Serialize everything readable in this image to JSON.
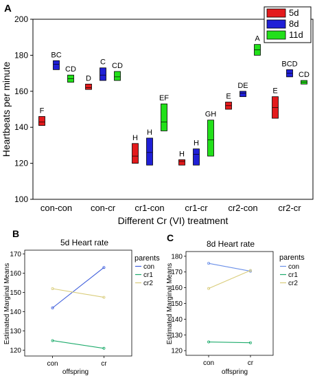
{
  "chart_data": [
    {
      "panel_label": "A",
      "type": "box",
      "title": "",
      "xlabel": "Different Cr (VI) treatment",
      "ylabel": "Heartbeats per minute",
      "ylim": [
        100,
        200
      ],
      "yticks": [
        100,
        120,
        140,
        160,
        180,
        200
      ],
      "categories": [
        "con-con",
        "con-cr",
        "cr1-con",
        "cr1-cr",
        "cr2-con",
        "cr2-cr"
      ],
      "legend": {
        "position": "top-right"
      },
      "series": [
        {
          "name": "5d",
          "color": "#e31a1c",
          "boxes": [
            {
              "low": 141,
              "high": 146,
              "median": 143,
              "letter": "F"
            },
            {
              "low": 161,
              "high": 164,
              "median": 162,
              "letter": "D"
            },
            {
              "low": 120,
              "high": 131,
              "median": 124,
              "letter": "H"
            },
            {
              "low": 119,
              "high": 122,
              "median": 121,
              "letter": "H"
            },
            {
              "low": 150,
              "high": 154,
              "median": 152,
              "letter": "E"
            },
            {
              "low": 145,
              "high": 157,
              "median": 151,
              "letter": "E"
            }
          ]
        },
        {
          "name": "8d",
          "color": "#1f1fd6",
          "boxes": [
            {
              "low": 172,
              "high": 177,
              "median": 175,
              "letter": "BC"
            },
            {
              "low": 166,
              "high": 173,
              "median": 169,
              "letter": "C"
            },
            {
              "low": 119,
              "high": 134,
              "median": 126,
              "letter": "H"
            },
            {
              "low": 119,
              "high": 128,
              "median": 125,
              "letter": "H"
            },
            {
              "low": 157,
              "high": 160,
              "median": 159,
              "letter": "DE"
            },
            {
              "low": 168,
              "high": 172,
              "median": 170,
              "letter": "BCD"
            }
          ]
        },
        {
          "name": "11d",
          "color": "#22e01a",
          "boxes": [
            {
              "low": 165,
              "high": 169,
              "median": 167,
              "letter": "CD"
            },
            {
              "low": 166,
              "high": 171,
              "median": 168,
              "letter": "CD"
            },
            {
              "low": 138,
              "high": 153,
              "median": 143,
              "letter": "EF"
            },
            {
              "low": 124,
              "high": 144,
              "median": 133,
              "letter": "GH"
            },
            {
              "low": 180,
              "high": 186,
              "median": 183,
              "letter": "A"
            },
            {
              "low": 164,
              "high": 166,
              "median": 165,
              "letter": "CD"
            }
          ]
        }
      ]
    },
    {
      "panel_label": "B",
      "type": "line",
      "title": "5d Heart rate",
      "xlabel": "offspring",
      "ylabel": "Estimated Marginal Means",
      "categories": [
        "con",
        "cr"
      ],
      "ylim": [
        117,
        172
      ],
      "yticks": [
        120,
        130,
        140,
        150,
        160,
        170
      ],
      "legend": {
        "title": "parents",
        "position": "right"
      },
      "series": [
        {
          "name": "con",
          "color": "#3b5bdb",
          "values": [
            142,
            163
          ]
        },
        {
          "name": "cr1",
          "color": "#1cab6b",
          "values": [
            125,
            121
          ]
        },
        {
          "name": "cr2",
          "color": "#d9cc7a",
          "values": [
            152,
            147.5
          ]
        }
      ]
    },
    {
      "panel_label": "C",
      "type": "line",
      "title": "8d Heart rate",
      "xlabel": "offspring",
      "ylabel": "Estimated Marginal Means",
      "categories": [
        "con",
        "cr"
      ],
      "ylim": [
        117,
        183
      ],
      "yticks": [
        120,
        130,
        140,
        150,
        160,
        170,
        180
      ],
      "legend": {
        "title": "parents",
        "position": "right"
      },
      "series": [
        {
          "name": "con",
          "color": "#6a8fe8",
          "values": [
            175.5,
            170.5
          ]
        },
        {
          "name": "cr1",
          "color": "#1cab6b",
          "values": [
            125.5,
            125
          ]
        },
        {
          "name": "cr2",
          "color": "#d9cc7a",
          "values": [
            159.5,
            171
          ]
        }
      ]
    }
  ]
}
